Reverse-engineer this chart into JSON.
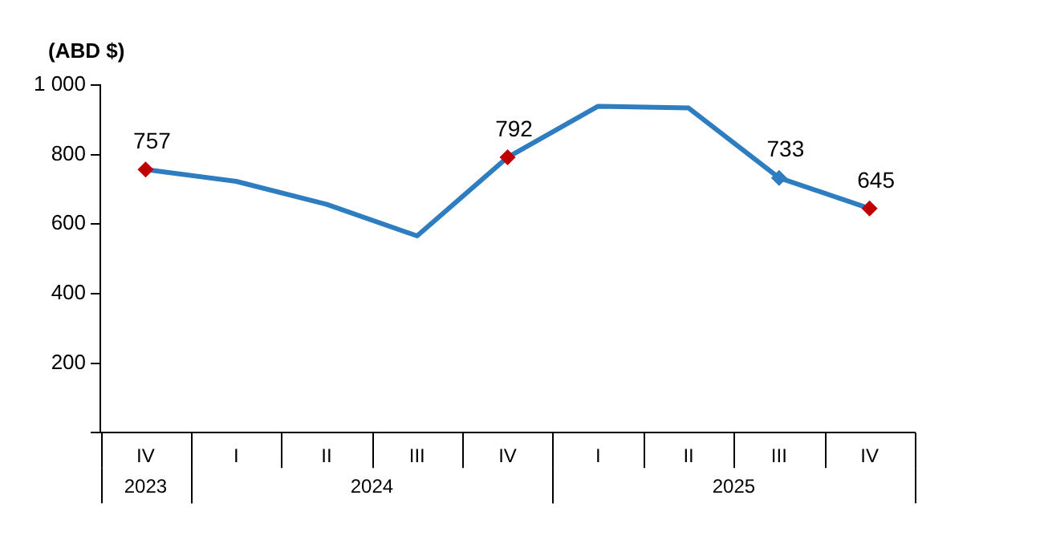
{
  "chart_data": {
    "type": "line",
    "ylabel": "(ABD $)",
    "categories": [
      "IV",
      "I",
      "II",
      "III",
      "IV",
      "I",
      "II",
      "III",
      "IV"
    ],
    "annotations": [
      "2023",
      "2024",
      "2025"
    ],
    "series": [
      {
        "color": "#2e7dc0",
        "values": [
          757,
          723,
          657,
          566,
          792,
          939,
          934,
          733,
          645
        ],
        "colors": [
          "#c00000",
          null,
          null,
          null,
          "#c00000",
          null,
          null,
          "#2e7dc0",
          "#c00000"
        ],
        "value_labels": [
          "757",
          null,
          null,
          null,
          "792",
          null,
          null,
          "733",
          "645"
        ]
      }
    ],
    "ylim": [
      0,
      1000
    ],
    "yticks": [
      {
        "value": 0,
        "label": null
      },
      200,
      400,
      600,
      800,
      {
        "value": 1000,
        "label": "1 000"
      }
    ],
    "grid": false,
    "legend": false,
    "line_style": "solid"
  }
}
